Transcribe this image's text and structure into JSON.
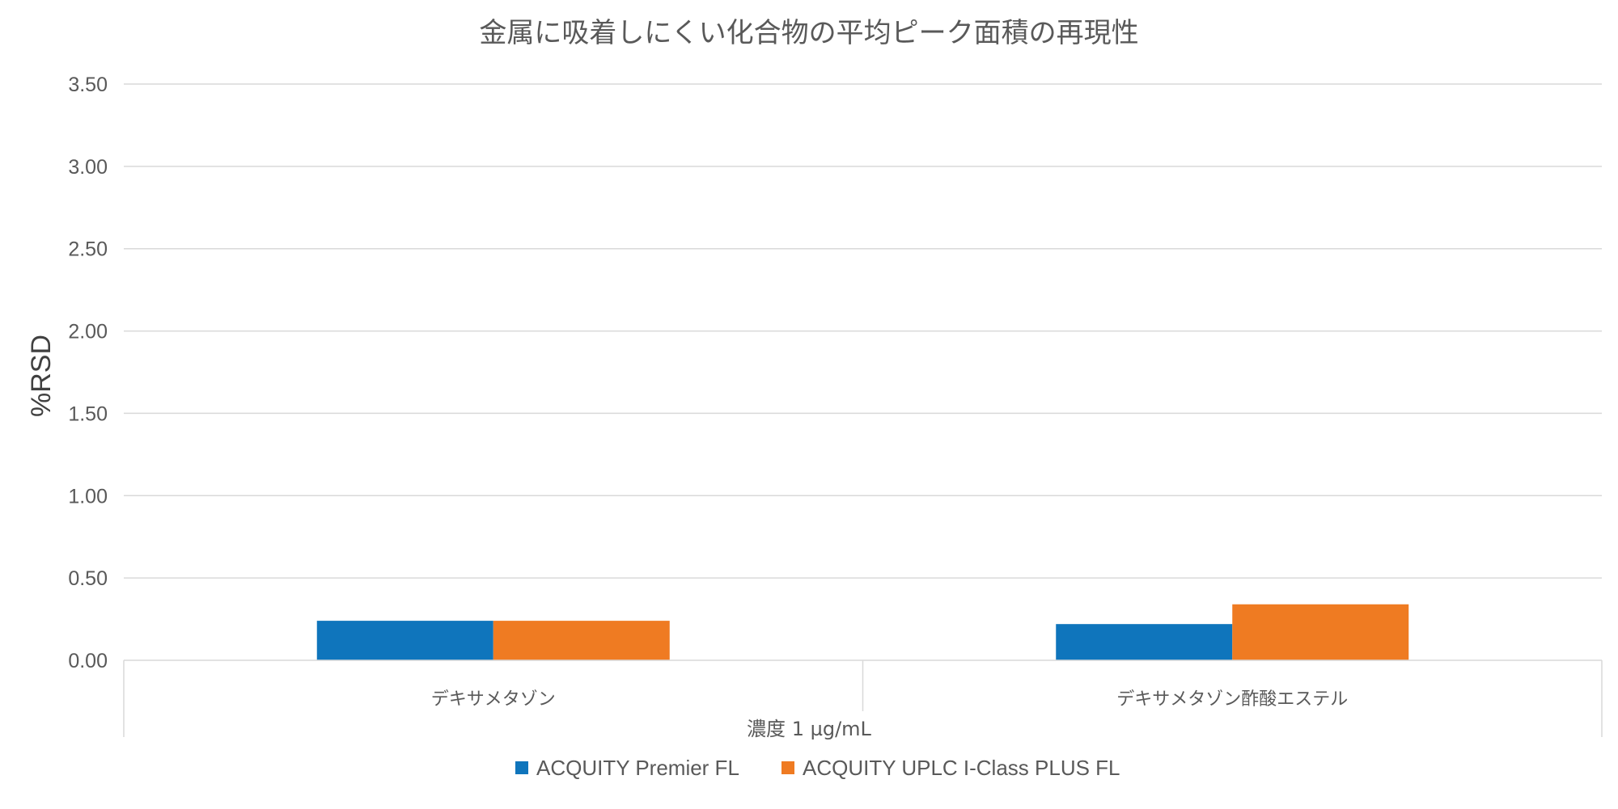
{
  "chart_data": {
    "type": "bar",
    "title": "金属に吸着しにくい化合物の平均ピーク面積の再現性",
    "xlabel": "濃度 1 µg/mL",
    "ylabel": "%RSD",
    "ylim": [
      0,
      3.5
    ],
    "yticks": [
      "0.00",
      "0.50",
      "1.00",
      "1.50",
      "2.00",
      "2.50",
      "3.00",
      "3.50"
    ],
    "categories": [
      "デキサメタゾン",
      "デキサメタゾン酢酸エステル"
    ],
    "series": [
      {
        "name": "ACQUITY Premier FL",
        "values": [
          0.24,
          0.22
        ],
        "color": "#0f75bc"
      },
      {
        "name": "ACQUITY UPLC I-Class PLUS FL",
        "values": [
          0.24,
          0.34
        ],
        "color": "#ef7b22"
      }
    ],
    "grid": true,
    "legend": "bottom"
  }
}
